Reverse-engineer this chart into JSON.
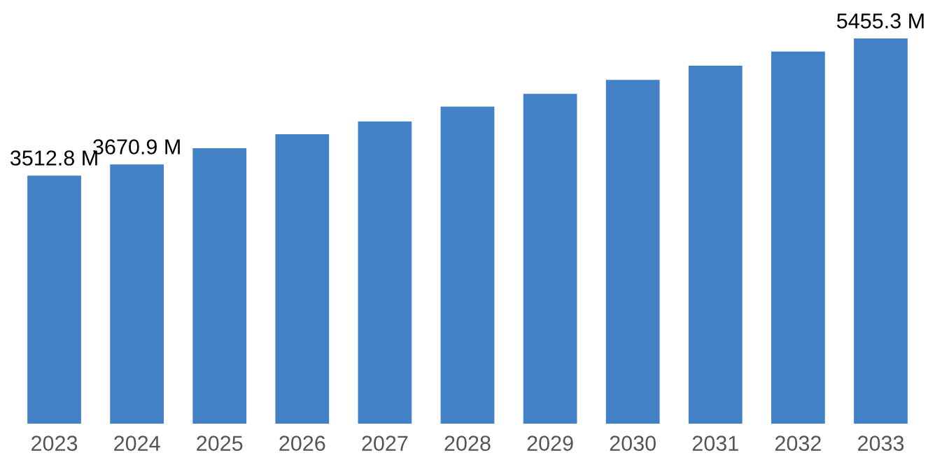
{
  "chart_data": {
    "type": "bar",
    "categories": [
      "2023",
      "2024",
      "2025",
      "2026",
      "2027",
      "2028",
      "2029",
      "2030",
      "2031",
      "2032",
      "2033"
    ],
    "values": [
      3512.8,
      3670.9,
      3900,
      4100,
      4280,
      4490,
      4670,
      4870,
      5070,
      5270,
      5455.3
    ],
    "value_labels": [
      "3512.8 M",
      "3670.9 M",
      null,
      null,
      null,
      null,
      null,
      null,
      null,
      null,
      "5455.3 M"
    ],
    "color": "#4281c6",
    "grid": false,
    "legend": false
  }
}
